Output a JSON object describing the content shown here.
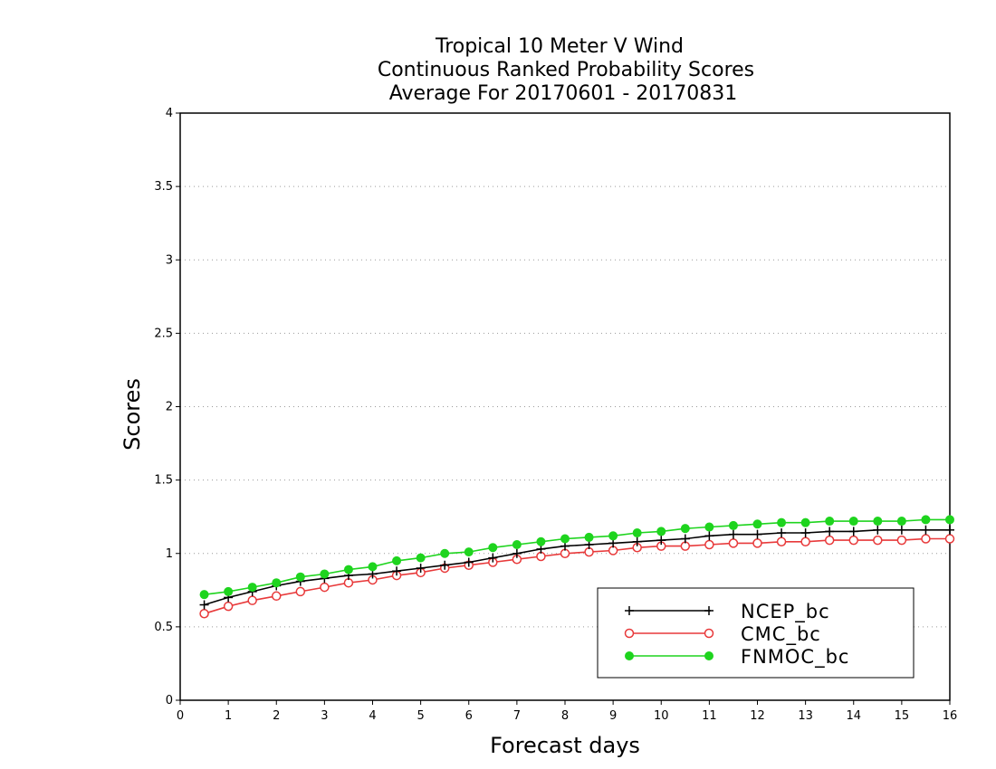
{
  "chart_data": {
    "type": "line",
    "title_lines": [
      "Tropical 10 Meter V Wind",
      "Continuous Ranked Probability Scores",
      "Average For 20170601 - 20170831"
    ],
    "xlabel": "Forecast days",
    "ylabel": "Scores",
    "xlim": [
      0,
      16
    ],
    "ylim": [
      0,
      4
    ],
    "xticks": [
      0,
      1,
      2,
      3,
      4,
      5,
      6,
      7,
      8,
      9,
      10,
      11,
      12,
      13,
      14,
      15,
      16
    ],
    "yticks": [
      0,
      0.5,
      1,
      1.5,
      2,
      2.5,
      3,
      3.5,
      4
    ],
    "x_tick_labels": [
      "0",
      "1",
      "2",
      "3",
      "4",
      "5",
      "6",
      "7",
      "8",
      "9",
      "10",
      "11",
      "12",
      "13",
      "14",
      "15",
      "16"
    ],
    "y_tick_labels": [
      "0",
      "0.5",
      "1",
      "1.5",
      "2",
      "2.5",
      "3",
      "3.5",
      "4"
    ],
    "grid": "horizontal dotted",
    "legend_position": "bottom-right",
    "x": [
      0.5,
      1,
      1.5,
      2,
      2.5,
      3,
      3.5,
      4,
      4.5,
      5,
      5.5,
      6,
      6.5,
      7,
      7.5,
      8,
      8.5,
      9,
      9.5,
      10,
      10.5,
      11,
      11.5,
      12,
      12.5,
      13,
      13.5,
      14,
      14.5,
      15,
      15.5,
      16
    ],
    "series": [
      {
        "name": "NCEP_bc",
        "color": "#000000",
        "marker": "plus",
        "values": [
          0.65,
          0.7,
          0.74,
          0.78,
          0.81,
          0.83,
          0.85,
          0.86,
          0.88,
          0.9,
          0.92,
          0.94,
          0.97,
          1.0,
          1.03,
          1.05,
          1.06,
          1.07,
          1.08,
          1.09,
          1.1,
          1.12,
          1.13,
          1.13,
          1.14,
          1.14,
          1.15,
          1.15,
          1.16,
          1.16,
          1.16,
          1.16
        ]
      },
      {
        "name": "CMC_bc",
        "color": "#e8393a",
        "marker": "open-circle",
        "values": [
          0.59,
          0.64,
          0.68,
          0.71,
          0.74,
          0.77,
          0.8,
          0.82,
          0.85,
          0.87,
          0.9,
          0.92,
          0.94,
          0.96,
          0.98,
          1.0,
          1.01,
          1.02,
          1.04,
          1.05,
          1.05,
          1.06,
          1.07,
          1.07,
          1.08,
          1.08,
          1.09,
          1.09,
          1.09,
          1.09,
          1.1,
          1.1
        ]
      },
      {
        "name": "FNMOC_bc",
        "color": "#1ed41e",
        "marker": "filled-circle",
        "values": [
          0.72,
          0.74,
          0.77,
          0.8,
          0.84,
          0.86,
          0.89,
          0.91,
          0.95,
          0.97,
          1.0,
          1.01,
          1.04,
          1.06,
          1.08,
          1.1,
          1.11,
          1.12,
          1.14,
          1.15,
          1.17,
          1.18,
          1.19,
          1.2,
          1.21,
          1.21,
          1.22,
          1.22,
          1.22,
          1.22,
          1.23,
          1.23
        ]
      }
    ]
  }
}
